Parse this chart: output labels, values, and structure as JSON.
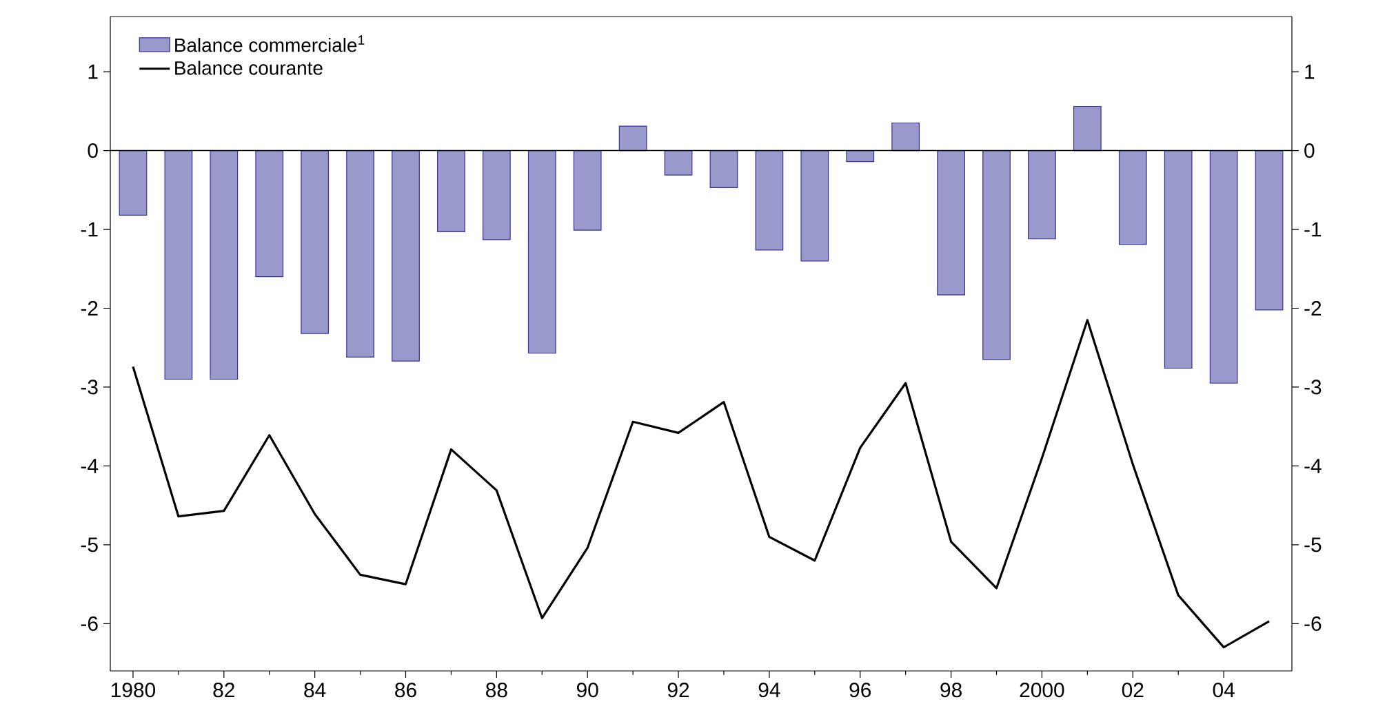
{
  "chart_data": {
    "type": "bar",
    "x": [
      1980,
      1981,
      1982,
      1983,
      1984,
      1985,
      1986,
      1987,
      1988,
      1989,
      1990,
      1991,
      1992,
      1993,
      1994,
      1995,
      1996,
      1997,
      1998,
      1999,
      2000,
      2001,
      2002,
      2003,
      2004,
      2005
    ],
    "series": [
      {
        "name": "Balance commerciale$^{1}$",
        "color": "#9999cc",
        "values": [
          -0.82,
          -2.9,
          -2.9,
          -1.6,
          -2.32,
          -2.62,
          -2.67,
          -1.03,
          -1.13,
          -2.57,
          -1.01,
          0.31,
          -0.31,
          -0.47,
          -1.26,
          -1.4,
          -0.14,
          0.35,
          -1.83,
          -2.65,
          -1.12,
          0.56,
          -1.19,
          -2.76,
          -2.95,
          -2.02
        ]
      },
      {
        "name": "Balance courante",
        "type": "line",
        "color": "#000000",
        "values": [
          -2.74,
          -4.64,
          -4.57,
          -3.61,
          -4.61,
          -5.38,
          -5.5,
          -3.79,
          -4.31,
          -5.93,
          -5.04,
          -3.44,
          -3.58,
          -3.19,
          -4.9,
          -5.2,
          -3.77,
          -2.95,
          -4.96,
          -5.55,
          -3.9,
          -2.15,
          -3.98,
          -5.64,
          -6.3,
          -5.97
        ]
      }
    ],
    "xlim": [
      1979.5,
      2005.5
    ],
    "xticks": [
      {
        "value": 1980,
        "label": "1980"
      },
      {
        "value": 1982,
        "label": "82"
      },
      {
        "value": 1984,
        "label": "84"
      },
      {
        "value": 1986,
        "label": "86"
      },
      {
        "value": 1988,
        "label": "88"
      },
      {
        "value": 1990,
        "label": "90"
      },
      {
        "value": 1992,
        "label": "92"
      },
      {
        "value": 1994,
        "label": "94"
      },
      {
        "value": 1996,
        "label": "96"
      },
      {
        "value": 1998,
        "label": "98"
      },
      {
        "value": 2000,
        "label": "2000"
      },
      {
        "value": 2002,
        "label": "02"
      },
      {
        "value": 2004,
        "label": "04"
      }
    ],
    "ylim": [
      -6.6,
      1.7
    ],
    "yticks": [
      1,
      0,
      -1,
      -2,
      -3,
      -4,
      -5,
      -6
    ],
    "y2lim": [
      -6.6,
      1.7
    ],
    "y2ticks": [
      1,
      0,
      -1,
      -2,
      -3,
      -4,
      -5,
      -6
    ],
    "ref_lines": [
      {
        "axis": "y",
        "value": 0,
        "color": "#000000"
      }
    ],
    "legend": "top left",
    "grid": false,
    "marker": "none"
  }
}
